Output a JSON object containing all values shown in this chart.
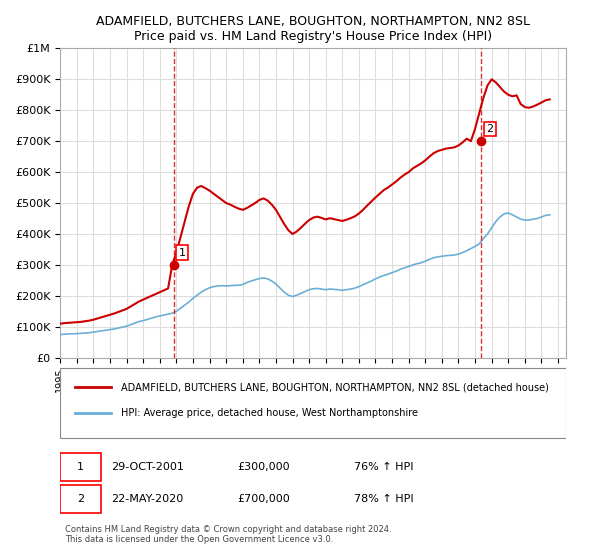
{
  "title": "ADAMFIELD, BUTCHERS LANE, BOUGHTON, NORTHAMPTON, NN2 8SL",
  "subtitle": "Price paid vs. HM Land Registry's House Price Index (HPI)",
  "legend_line1": "ADAMFIELD, BUTCHERS LANE, BOUGHTON, NORTHAMPTON, NN2 8SL (detached house)",
  "legend_line2": "HPI: Average price, detached house, West Northamptonshire",
  "footer": "Contains HM Land Registry data © Crown copyright and database right 2024.\nThis data is licensed under the Open Government Licence v3.0.",
  "sale1_box": "1",
  "sale1_date": "29-OCT-2001",
  "sale1_price": "£300,000",
  "sale1_hpi": "76% ↑ HPI",
  "sale2_box": "2",
  "sale2_date": "22-MAY-2020",
  "sale2_price": "£700,000",
  "sale2_hpi": "78% ↑ HPI",
  "marker1_x": 2001.83,
  "marker1_y": 300000,
  "marker2_x": 2020.38,
  "marker2_y": 700000,
  "vline1_x": 2001.83,
  "vline2_x": 2020.38,
  "hpi_color": "#6baed6",
  "price_color": "#cc0000",
  "vline_color": "#cc0000",
  "background_color": "#ffffff",
  "grid_color": "#dddddd",
  "ylim": [
    0,
    1000000
  ],
  "yticks": [
    0,
    100000,
    200000,
    300000,
    400000,
    500000,
    600000,
    700000,
    800000,
    900000,
    1000000
  ],
  "xlim_left": 1995.0,
  "xlim_right": 2025.5,
  "xticks": [
    1995,
    1996,
    1997,
    1998,
    1999,
    2000,
    2001,
    2002,
    2003,
    2004,
    2005,
    2006,
    2007,
    2008,
    2009,
    2010,
    2011,
    2012,
    2013,
    2014,
    2015,
    2016,
    2017,
    2018,
    2019,
    2020,
    2021,
    2022,
    2023,
    2024,
    2025
  ],
  "hpi_data_x": [
    1995.0,
    1995.25,
    1995.5,
    1995.75,
    1996.0,
    1996.25,
    1996.5,
    1996.75,
    1997.0,
    1997.25,
    1997.5,
    1997.75,
    1998.0,
    1998.25,
    1998.5,
    1998.75,
    1999.0,
    1999.25,
    1999.5,
    1999.75,
    2000.0,
    2000.25,
    2000.5,
    2000.75,
    2001.0,
    2001.25,
    2001.5,
    2001.75,
    2002.0,
    2002.25,
    2002.5,
    2002.75,
    2003.0,
    2003.25,
    2003.5,
    2003.75,
    2004.0,
    2004.25,
    2004.5,
    2004.75,
    2005.0,
    2005.25,
    2005.5,
    2005.75,
    2006.0,
    2006.25,
    2006.5,
    2006.75,
    2007.0,
    2007.25,
    2007.5,
    2007.75,
    2008.0,
    2008.25,
    2008.5,
    2008.75,
    2009.0,
    2009.25,
    2009.5,
    2009.75,
    2010.0,
    2010.25,
    2010.5,
    2010.75,
    2011.0,
    2011.25,
    2011.5,
    2011.75,
    2012.0,
    2012.25,
    2012.5,
    2012.75,
    2013.0,
    2013.25,
    2013.5,
    2013.75,
    2014.0,
    2014.25,
    2014.5,
    2014.75,
    2015.0,
    2015.25,
    2015.5,
    2015.75,
    2016.0,
    2016.25,
    2016.5,
    2016.75,
    2017.0,
    2017.25,
    2017.5,
    2017.75,
    2018.0,
    2018.25,
    2018.5,
    2018.75,
    2019.0,
    2019.25,
    2019.5,
    2019.75,
    2020.0,
    2020.25,
    2020.5,
    2020.75,
    2021.0,
    2021.25,
    2021.5,
    2021.75,
    2022.0,
    2022.25,
    2022.5,
    2022.75,
    2023.0,
    2023.25,
    2023.5,
    2023.75,
    2024.0,
    2024.25,
    2024.5
  ],
  "hpi_data_y": [
    75000,
    76000,
    77000,
    77500,
    78000,
    79000,
    80000,
    81000,
    83000,
    85000,
    87000,
    89000,
    91000,
    93000,
    96000,
    99000,
    102000,
    107000,
    112000,
    117000,
    120000,
    124000,
    128000,
    132000,
    135000,
    138000,
    141000,
    144000,
    150000,
    160000,
    170000,
    180000,
    192000,
    202000,
    212000,
    220000,
    226000,
    230000,
    232000,
    233000,
    232000,
    233000,
    234000,
    234000,
    237000,
    243000,
    248000,
    252000,
    256000,
    258000,
    255000,
    248000,
    238000,
    225000,
    212000,
    202000,
    198000,
    202000,
    208000,
    214000,
    220000,
    223000,
    224000,
    222000,
    220000,
    222000,
    221000,
    220000,
    218000,
    220000,
    222000,
    225000,
    230000,
    236000,
    242000,
    248000,
    255000,
    261000,
    266000,
    270000,
    275000,
    280000,
    286000,
    291000,
    295000,
    300000,
    304000,
    307000,
    312000,
    318000,
    323000,
    326000,
    328000,
    330000,
    331000,
    332000,
    335000,
    340000,
    346000,
    353000,
    360000,
    368000,
    385000,
    400000,
    420000,
    440000,
    455000,
    465000,
    468000,
    462000,
    455000,
    448000,
    445000,
    445000,
    448000,
    450000,
    455000,
    460000,
    462000
  ],
  "price_data_x": [
    1995.0,
    1995.25,
    1995.5,
    1995.75,
    1996.0,
    1996.25,
    1996.5,
    1996.75,
    1997.0,
    1997.25,
    1997.5,
    1997.75,
    1998.0,
    1998.25,
    1998.5,
    1998.75,
    1999.0,
    1999.25,
    1999.5,
    1999.75,
    2000.0,
    2000.25,
    2000.5,
    2000.75,
    2001.0,
    2001.25,
    2001.5,
    2001.75,
    2002.0,
    2002.25,
    2002.5,
    2002.75,
    2003.0,
    2003.25,
    2003.5,
    2003.75,
    2004.0,
    2004.25,
    2004.5,
    2004.75,
    2005.0,
    2005.25,
    2005.5,
    2005.75,
    2006.0,
    2006.25,
    2006.5,
    2006.75,
    2007.0,
    2007.25,
    2007.5,
    2007.75,
    2008.0,
    2008.25,
    2008.5,
    2008.75,
    2009.0,
    2009.25,
    2009.5,
    2009.75,
    2010.0,
    2010.25,
    2010.5,
    2010.75,
    2011.0,
    2011.25,
    2011.5,
    2011.75,
    2012.0,
    2012.25,
    2012.5,
    2012.75,
    2013.0,
    2013.25,
    2013.5,
    2013.75,
    2014.0,
    2014.25,
    2014.5,
    2014.75,
    2015.0,
    2015.25,
    2015.5,
    2015.75,
    2016.0,
    2016.25,
    2016.5,
    2016.75,
    2017.0,
    2017.25,
    2017.5,
    2017.75,
    2018.0,
    2018.25,
    2018.5,
    2018.75,
    2019.0,
    2019.25,
    2019.5,
    2019.75,
    2020.0,
    2020.25,
    2020.5,
    2020.75,
    2021.0,
    2021.25,
    2021.5,
    2021.75,
    2022.0,
    2022.25,
    2022.5,
    2022.75,
    2023.0,
    2023.25,
    2023.5,
    2023.75,
    2024.0,
    2024.25,
    2024.5
  ],
  "price_data_y": [
    110000,
    112000,
    113000,
    114000,
    115000,
    116000,
    118000,
    120000,
    123000,
    127000,
    131000,
    135000,
    139000,
    143000,
    148000,
    153000,
    158000,
    166000,
    174000,
    182000,
    188000,
    194000,
    200000,
    206000,
    212000,
    218000,
    224000,
    300000,
    340000,
    390000,
    440000,
    490000,
    530000,
    550000,
    555000,
    548000,
    540000,
    530000,
    520000,
    510000,
    500000,
    495000,
    488000,
    482000,
    478000,
    484000,
    492000,
    500000,
    510000,
    515000,
    508000,
    495000,
    478000,
    455000,
    432000,
    412000,
    400000,
    408000,
    420000,
    433000,
    445000,
    453000,
    456000,
    452000,
    447000,
    451000,
    448000,
    445000,
    442000,
    446000,
    451000,
    457000,
    466000,
    478000,
    492000,
    505000,
    518000,
    530000,
    542000,
    550000,
    560000,
    570000,
    582000,
    592000,
    600000,
    612000,
    620000,
    628000,
    638000,
    650000,
    661000,
    668000,
    672000,
    676000,
    678000,
    680000,
    686000,
    696000,
    708000,
    700000,
    740000,
    790000,
    840000,
    880000,
    900000,
    890000,
    875000,
    860000,
    850000,
    845000,
    848000,
    820000,
    810000,
    808000,
    812000,
    818000,
    825000,
    832000,
    835000
  ]
}
